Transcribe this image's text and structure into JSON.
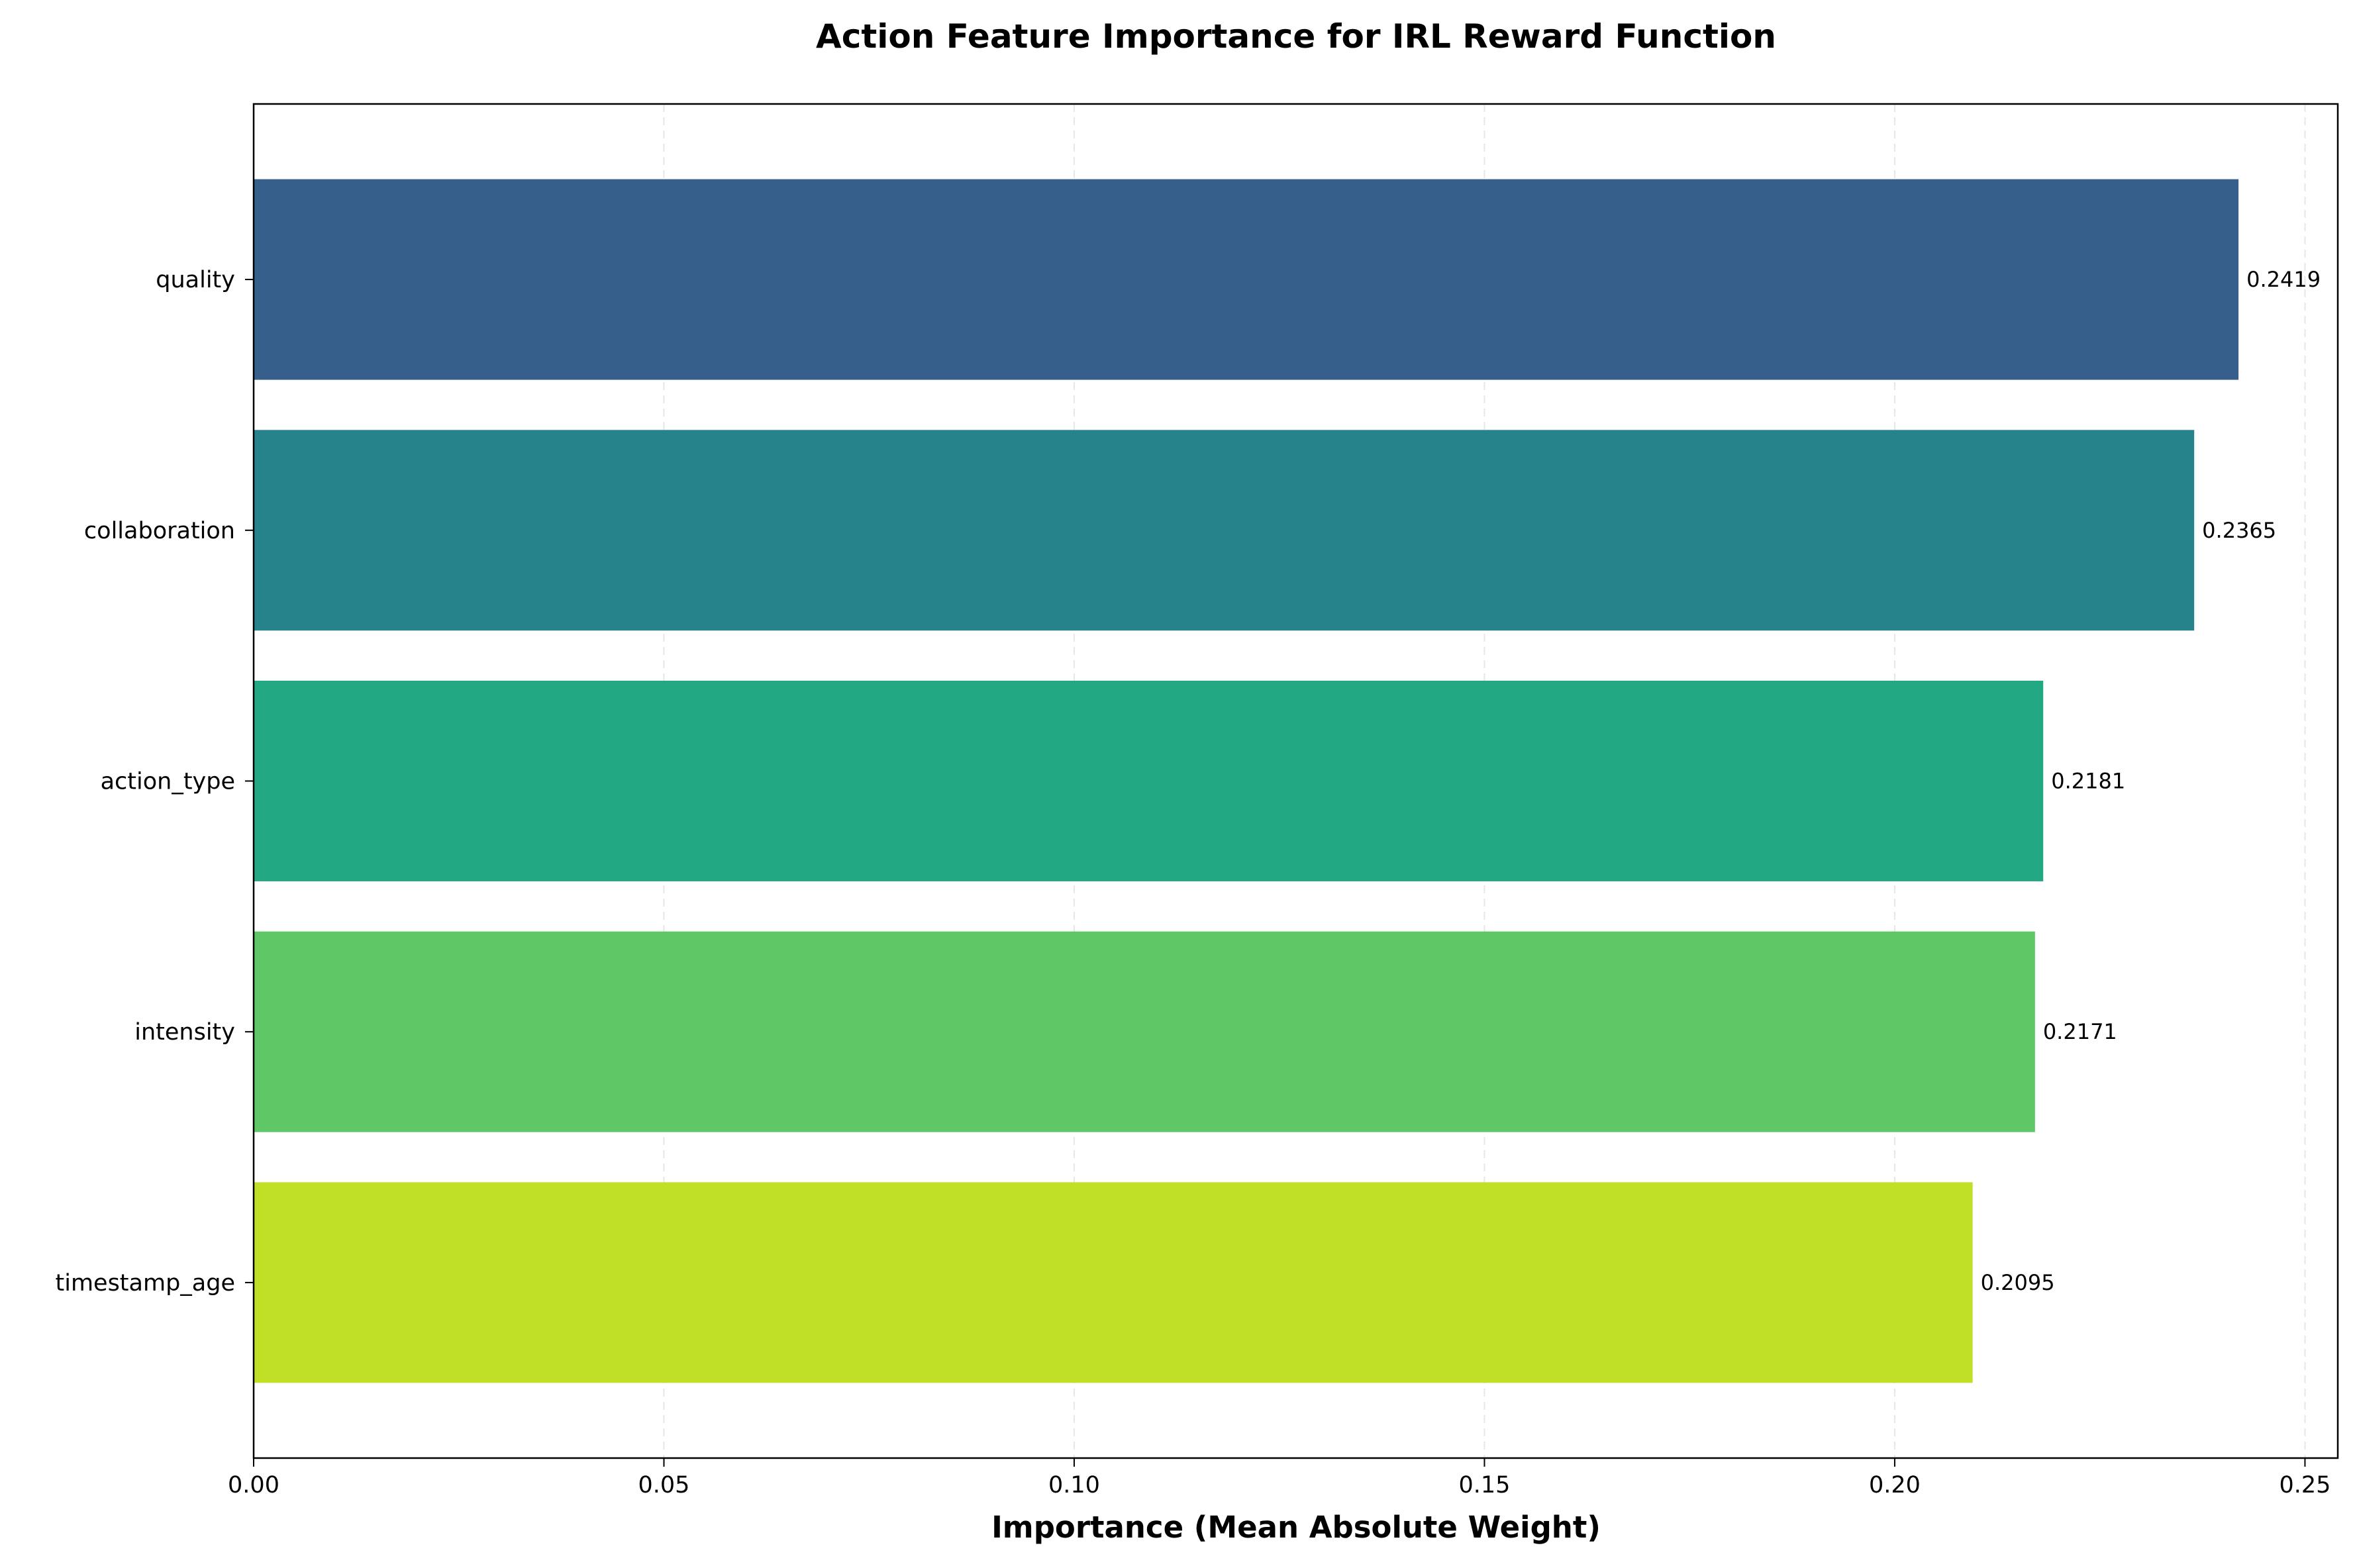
{
  "chart_data": {
    "type": "bar",
    "orientation": "horizontal",
    "title": "Action Feature Importance for IRL Reward Function",
    "xlabel": "Importance (Mean Absolute Weight)",
    "ylabel": "",
    "categories": [
      "quality",
      "collaboration",
      "action_type",
      "intensity",
      "timestamp_age"
    ],
    "values": [
      0.2419,
      0.2365,
      0.2181,
      0.2171,
      0.2095
    ],
    "data_labels": [
      "0.2419",
      "0.2365",
      "0.2181",
      "0.2171",
      "0.2095"
    ],
    "colors": [
      "#365f8b",
      "#26838b",
      "#23a884",
      "#5fc765",
      "#bfe027"
    ],
    "xlim": [
      0,
      0.254
    ],
    "xticks": [
      0.0,
      0.05,
      0.1,
      0.15,
      0.2,
      0.25
    ],
    "xtick_labels": [
      "0.00",
      "0.05",
      "0.10",
      "0.15",
      "0.20",
      "0.25"
    ],
    "grid": "x-dashed",
    "legend": "none"
  }
}
